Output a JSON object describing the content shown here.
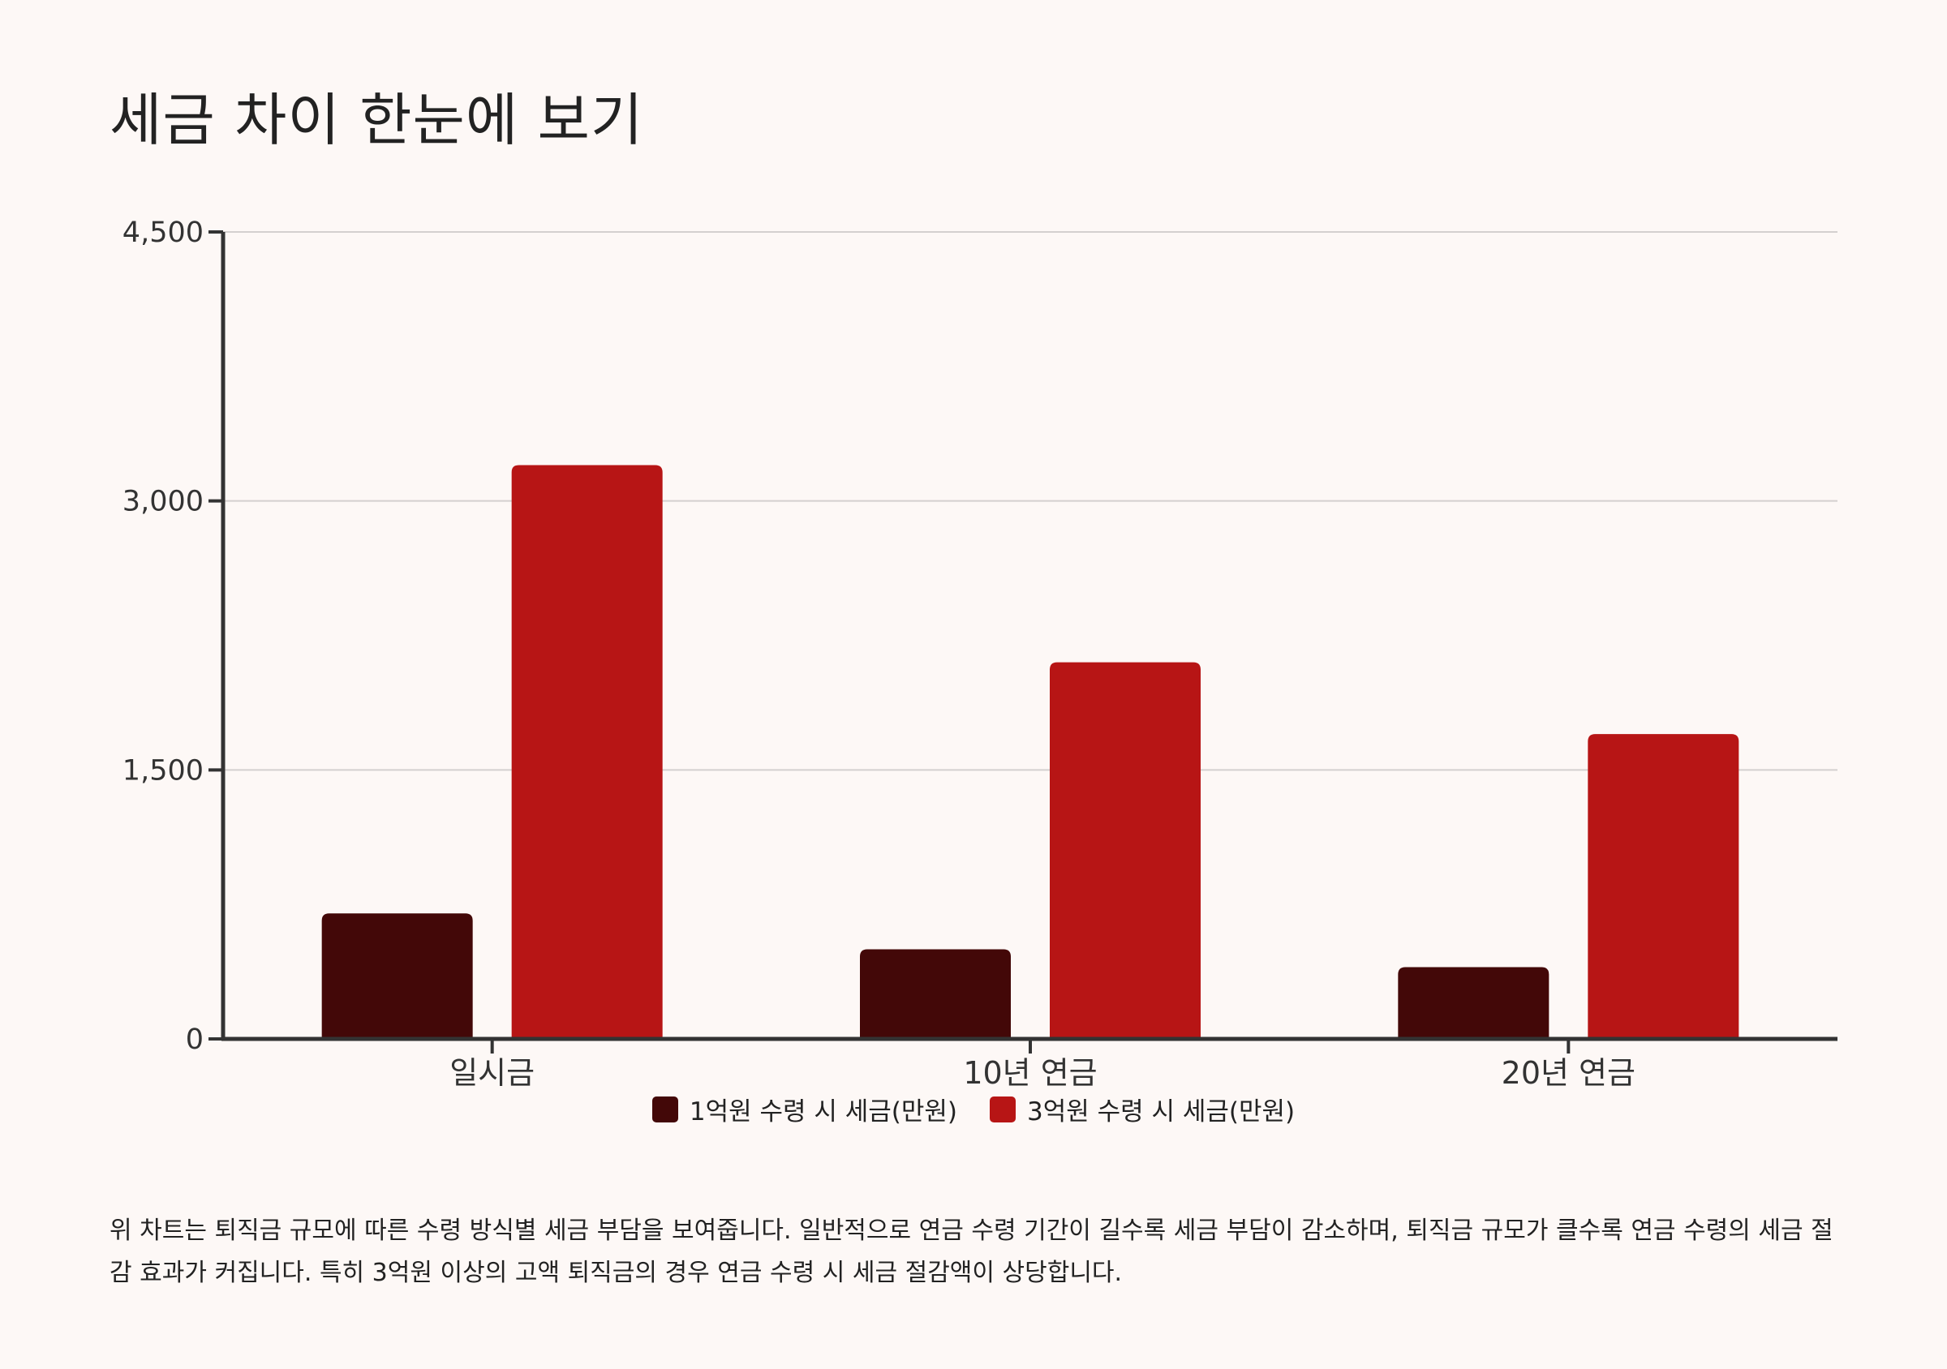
{
  "page": {
    "title": "세금 차이 한눈에 보기",
    "note": "위 차트는 퇴직금 규모에 따른 수령 방식별 세금 부담을 보여줍니다. 일반적으로 연금 수령 기간이 길수록 세금 부담이 감소하며, 퇴직금 규모가 클수록 연금 수령의 세금 절감 효과가 커집니다. 특히 3억원 이상의 고액 퇴직금의 경우 연금 수령 시 세금 절감액이 상당합니다."
  },
  "chart_data": {
    "type": "bar",
    "title": "세금 차이 한눈에 보기",
    "categories": [
      "일시금",
      "10년 연금",
      "20년 연금"
    ],
    "series": [
      {
        "name": "1억원 수령 시 세금(만원)",
        "values": [
          700,
          500,
          400
        ],
        "color": "#430808"
      },
      {
        "name": "3억원 수령 시 세금(만원)",
        "values": [
          3200,
          2100,
          1700
        ],
        "color": "#b71515"
      }
    ],
    "ylim": [
      0,
      4500
    ],
    "yticks": [
      0,
      1500,
      3000,
      4500
    ],
    "ytick_labels": [
      "0",
      "1,500",
      "3,000",
      "4,500"
    ],
    "xlabel": "",
    "ylabel": "",
    "grid": true,
    "legend_position": "bottom"
  }
}
